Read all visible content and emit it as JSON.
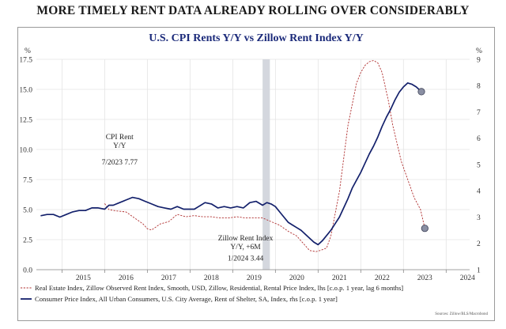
{
  "headline": "MORE TIMELY RENT DATA ALREADY ROLLING OVER CONSIDERABLY",
  "source_note": "Sources: Zillow/BLS/Macrobond",
  "chart_data": {
    "type": "line",
    "title": "U.S. CPI Rents Y/Y vs Zillow Rent Index Y/Y",
    "left_axis": {
      "unit": "%",
      "ylim": [
        0,
        17.5
      ],
      "ticks": [
        "0.0",
        "2.5",
        "5.0",
        "7.5",
        "10.0",
        "12.5",
        "15.0",
        "17.5"
      ]
    },
    "right_axis": {
      "unit": "%",
      "ylim": [
        1,
        9
      ],
      "ticks": [
        "1",
        "2",
        "3",
        "4",
        "5",
        "6",
        "7",
        "8",
        "9"
      ]
    },
    "xlim": [
      2014.4,
      2024.55
    ],
    "x_ticks": [
      "2015",
      "2016",
      "2017",
      "2018",
      "2019",
      "2020",
      "2021",
      "2022",
      "2023",
      "2024"
    ],
    "shaded_region": [
      2019.7,
      2019.87
    ],
    "grid": true,
    "legend_placement": "bottom",
    "annotations": [
      {
        "lines": [
          "CPI Rent",
          "Y/Y"
        ],
        "x": 2016.35,
        "y_left": 10.85
      },
      {
        "lines": [
          "7/2023 7.77"
        ],
        "x": 2016.35,
        "y_left": 8.75
      },
      {
        "lines": [
          "Zillow Rent Index",
          "Y/Y, +6M"
        ],
        "x": 2019.3,
        "y_left": 2.45
      },
      {
        "lines": [
          "1/2024 3.44"
        ],
        "x": 2019.3,
        "y_left": 0.75
      }
    ],
    "series": [
      {
        "name": "Real Estate Index, Zillow Observed Rent Index, Smooth, USD, Zillow, Residential, Rental Price Index, lhs [c.o.p. 1 year, lag 6 months]",
        "axis": "left",
        "style": "dashed",
        "color": "#b03030",
        "x": [
          2016.0,
          2016.1,
          2016.25,
          2016.5,
          2016.7,
          2016.9,
          2017.0,
          2017.1,
          2017.3,
          2017.5,
          2017.7,
          2017.9,
          2018.1,
          2018.3,
          2018.5,
          2018.7,
          2018.9,
          2019.1,
          2019.3,
          2019.5,
          2019.7,
          2019.9,
          2020.1,
          2020.3,
          2020.5,
          2020.6,
          2020.7,
          2020.8,
          2020.95,
          2021.05,
          2021.2,
          2021.3,
          2021.5,
          2021.7,
          2021.9,
          2022.0,
          2022.1,
          2022.2,
          2022.3,
          2022.4,
          2022.5,
          2022.65,
          2022.75,
          2022.85,
          2022.95,
          2023.1,
          2023.25,
          2023.4,
          2023.5
        ],
        "y": [
          5.5,
          5.0,
          4.9,
          4.8,
          4.3,
          3.8,
          3.4,
          3.3,
          3.8,
          4.0,
          4.6,
          4.4,
          4.5,
          4.4,
          4.4,
          4.3,
          4.3,
          4.4,
          4.3,
          4.3,
          4.3,
          4.0,
          3.7,
          3.2,
          2.8,
          2.4,
          2.0,
          1.6,
          1.5,
          1.6,
          1.8,
          2.8,
          6.5,
          12.0,
          15.5,
          16.4,
          17.0,
          17.3,
          17.4,
          17.2,
          16.4,
          14.0,
          12.0,
          10.5,
          9.0,
          7.5,
          6.0,
          5.0,
          3.44
        ]
      },
      {
        "name": "Consumer Price Index, All Urban Consumers, U.S. City Average, Rent of Shelter, SA, Index, rhs [c.o.p. 1 year]",
        "axis": "right",
        "style": "solid",
        "color": "#13206b",
        "x": [
          2014.5,
          2014.65,
          2014.8,
          2014.95,
          2015.1,
          2015.25,
          2015.4,
          2015.55,
          2015.7,
          2015.85,
          2016.0,
          2016.1,
          2016.2,
          2016.35,
          2016.5,
          2016.65,
          2016.8,
          2016.95,
          2017.1,
          2017.25,
          2017.4,
          2017.55,
          2017.7,
          2017.85,
          2018.0,
          2018.1,
          2018.2,
          2018.35,
          2018.5,
          2018.65,
          2018.8,
          2018.95,
          2019.1,
          2019.25,
          2019.4,
          2019.55,
          2019.7,
          2019.8,
          2019.9,
          2020.0,
          2020.1,
          2020.2,
          2020.3,
          2020.4,
          2020.5,
          2020.6,
          2020.7,
          2020.8,
          2020.9,
          2021.0,
          2021.1,
          2021.2,
          2021.3,
          2021.4,
          2021.5,
          2021.6,
          2021.7,
          2021.8,
          2021.9,
          2022.0,
          2022.1,
          2022.2,
          2022.3,
          2022.4,
          2022.5,
          2022.6,
          2022.7,
          2022.8,
          2022.9,
          2023.0,
          2023.1,
          2023.2,
          2023.3,
          2023.42
        ],
        "y": [
          3.05,
          3.1,
          3.1,
          3.0,
          3.1,
          3.2,
          3.25,
          3.25,
          3.35,
          3.35,
          3.3,
          3.45,
          3.45,
          3.55,
          3.65,
          3.75,
          3.7,
          3.6,
          3.5,
          3.4,
          3.35,
          3.3,
          3.4,
          3.3,
          3.3,
          3.3,
          3.4,
          3.55,
          3.5,
          3.35,
          3.4,
          3.35,
          3.4,
          3.35,
          3.55,
          3.6,
          3.45,
          3.55,
          3.5,
          3.4,
          3.2,
          3.0,
          2.8,
          2.7,
          2.6,
          2.5,
          2.35,
          2.2,
          2.05,
          1.95,
          2.1,
          2.3,
          2.5,
          2.75,
          3.0,
          3.35,
          3.7,
          4.1,
          4.4,
          4.7,
          5.05,
          5.4,
          5.7,
          6.05,
          6.45,
          6.8,
          7.1,
          7.45,
          7.75,
          7.95,
          8.1,
          8.05,
          7.95,
          7.77
        ]
      }
    ],
    "end_markers": [
      {
        "series": 1,
        "x": 2023.42,
        "y": 7.77
      },
      {
        "series": 0,
        "x": 2023.5,
        "y": 3.44
      }
    ]
  }
}
